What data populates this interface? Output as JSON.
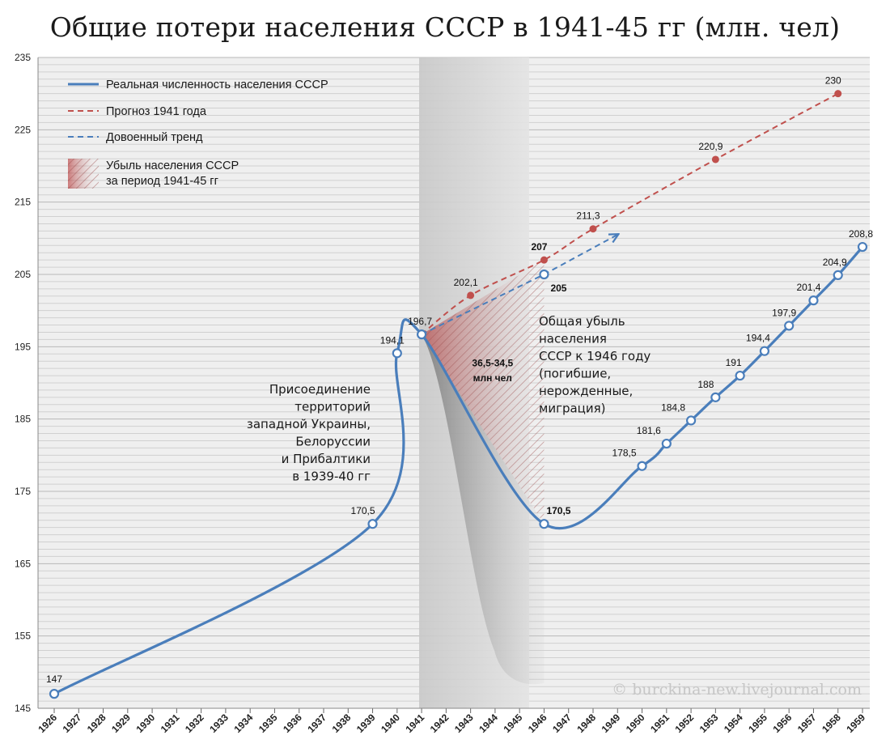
{
  "title": "Общие потери населения СССР в 1941-45 гг (млн. чел)",
  "watermark": "© burckina-new.livejournal.com",
  "chart_data": {
    "type": "line",
    "title": "Общие потери населения СССР в 1941-45 гг (млн. чел)",
    "ylim": [
      145,
      235
    ],
    "yticks": [
      145,
      155,
      165,
      175,
      185,
      195,
      205,
      215,
      225,
      235
    ],
    "grid": true,
    "legend_position": "top-left",
    "categories": [
      "1926",
      "1927",
      "1928",
      "1929",
      "1930",
      "1931",
      "1932",
      "1933",
      "1934",
      "1935",
      "1936",
      "1937",
      "1938",
      "1939",
      "1940",
      "1941",
      "1942",
      "1943",
      "1944",
      "1945",
      "1946",
      "1947",
      "1948",
      "1949",
      "1950",
      "1951",
      "1952",
      "1953",
      "1954",
      "1955",
      "1956",
      "1957",
      "1958",
      "1959"
    ],
    "series": [
      {
        "name": "Реальная численность населения СССР",
        "color": "#4a7ebb",
        "style": "solid",
        "points": [
          {
            "x": "1926",
            "y": 147,
            "label": "147"
          },
          {
            "x": "1939",
            "y": 170.5,
            "label": "170,5"
          },
          {
            "x": "1940",
            "y": 194.1,
            "label": "194,1"
          },
          {
            "x": "1941",
            "y": 196.7,
            "label": "196,7"
          },
          {
            "x": "1946",
            "y": 170.5,
            "label": "170,5"
          },
          {
            "x": "1950",
            "y": 178.5,
            "label": "178,5"
          },
          {
            "x": "1951",
            "y": 181.6,
            "label": "181,6"
          },
          {
            "x": "1952",
            "y": 184.8,
            "label": "184,8"
          },
          {
            "x": "1953",
            "y": 188,
            "label": "188"
          },
          {
            "x": "1954",
            "y": 191,
            "label": "191"
          },
          {
            "x": "1955",
            "y": 194.4,
            "label": "194,4"
          },
          {
            "x": "1956",
            "y": 197.9,
            "label": "197,9"
          },
          {
            "x": "1957",
            "y": 201.4,
            "label": "201,4"
          },
          {
            "x": "1958",
            "y": 204.9,
            "label": "204,9"
          },
          {
            "x": "1959",
            "y": 208.8,
            "label": "208,8"
          }
        ]
      },
      {
        "name": "Прогноз 1941 года",
        "color": "#c0504d",
        "style": "dashed",
        "points": [
          {
            "x": "1941",
            "y": 196.7,
            "label": ""
          },
          {
            "x": "1943",
            "y": 202.1,
            "label": "202,1"
          },
          {
            "x": "1946",
            "y": 207,
            "label": "207"
          },
          {
            "x": "1948",
            "y": 211.3,
            "label": "211,3"
          },
          {
            "x": "1953",
            "y": 220.9,
            "label": "220,9"
          },
          {
            "x": "1958",
            "y": 230,
            "label": "230"
          }
        ]
      },
      {
        "name": "Довоенный тренд",
        "color": "#4a7ebb",
        "style": "dashed",
        "points": [
          {
            "x": "1941",
            "y": 196.7,
            "label": ""
          },
          {
            "x": "1946",
            "y": 205,
            "label": "205"
          },
          {
            "x": "1949",
            "y": 210.5,
            "label": ""
          }
        ]
      }
    ],
    "shaded_region": {
      "name": "Убыль населения СССР за период 1941-45 гг",
      "x_from": "1941",
      "x_to": "1946",
      "loss_value": "36,5-34,5",
      "loss_unit": "млн чел"
    },
    "annotations": [
      {
        "text": [
          "Присоединение",
          "территорий",
          "западной Украины,",
          "Белоруссии",
          "и Прибалтики",
          "в 1939-40 гг"
        ]
      },
      {
        "text": [
          "Общая убыль",
          "населения",
          "СССР к 1946 году",
          "(погибшие,",
          "нерожденные,",
          "миграция)"
        ]
      }
    ]
  }
}
